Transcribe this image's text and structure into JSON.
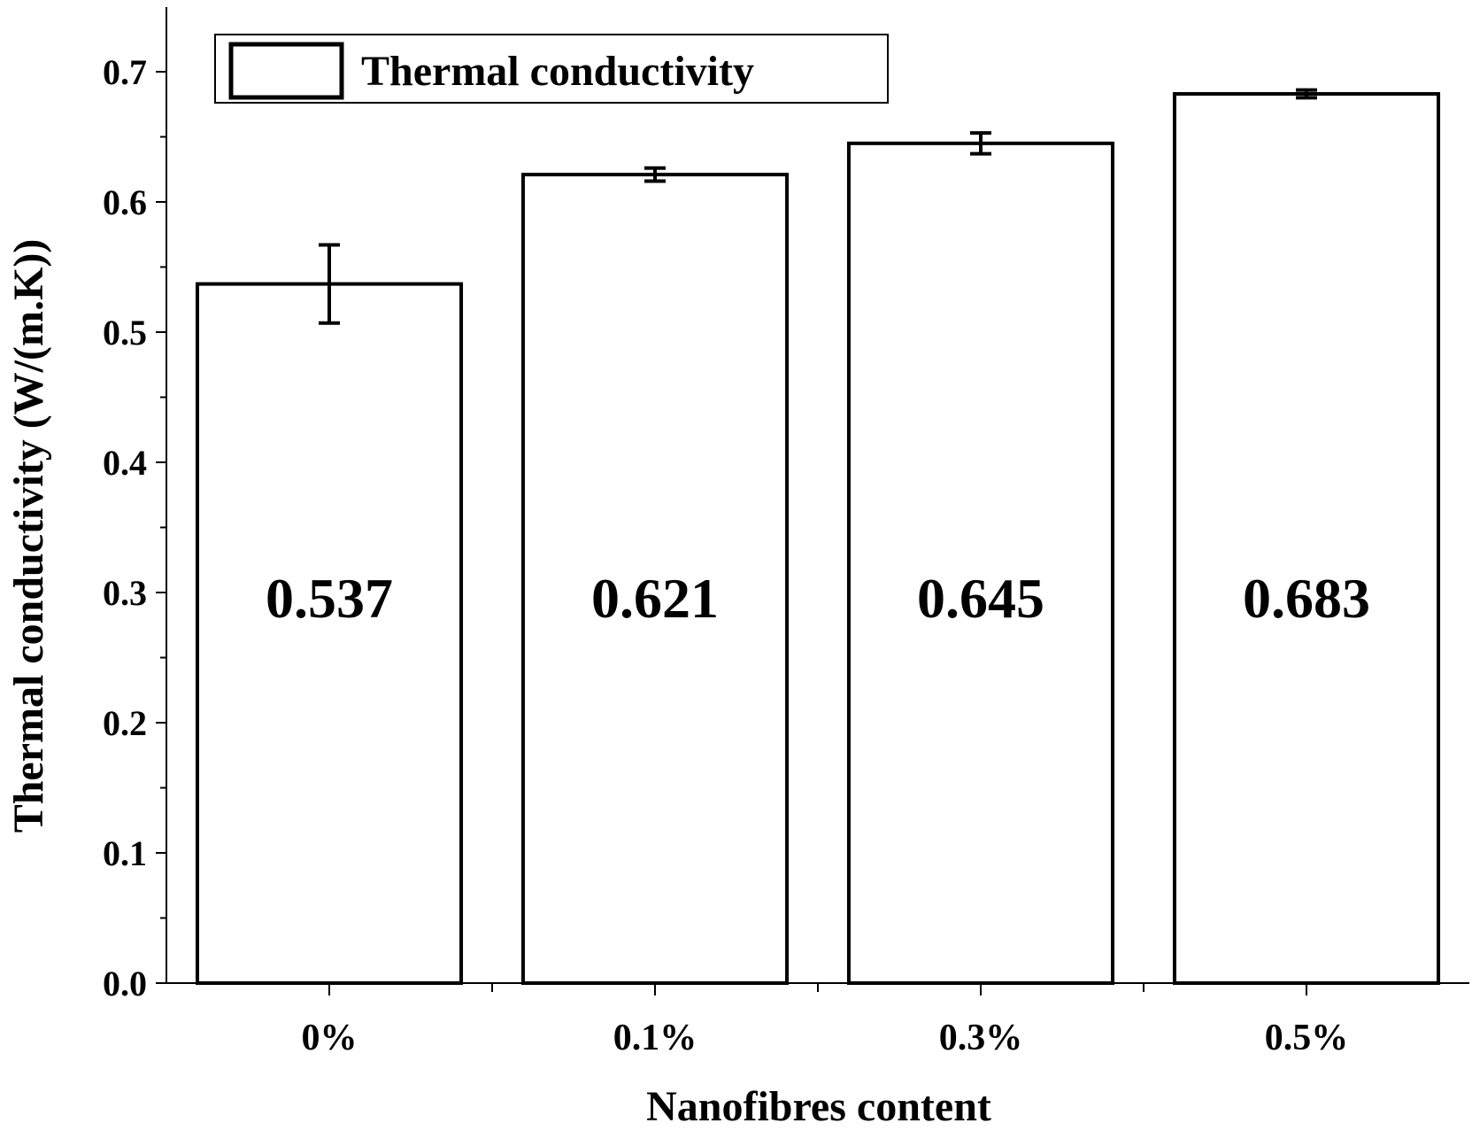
{
  "chart_data": {
    "type": "bar",
    "categories": [
      "0%",
      "0.1%",
      "0.3%",
      "0.5%"
    ],
    "series": [
      {
        "name": "Thermal conductivity",
        "values": [
          0.537,
          0.621,
          0.645,
          0.683
        ],
        "error": [
          0.03,
          0.005,
          0.008,
          0.003
        ]
      }
    ],
    "data_labels": [
      "0.537",
      "0.621",
      "0.645",
      "0.683"
    ],
    "xlabel": "Nanofibres content",
    "ylabel": "Thermal conductivity (W/(m.K))",
    "ylim": [
      0.0,
      0.75
    ],
    "yticks": [
      0.0,
      0.1,
      0.2,
      0.3,
      0.4,
      0.5,
      0.6,
      0.7
    ],
    "ytick_labels": [
      "0.0",
      "0.1",
      "0.2",
      "0.3",
      "0.4",
      "0.5",
      "0.6",
      "0.7"
    ],
    "grid": false,
    "legend_position": "top-left",
    "colors": {
      "bar_fill": "#ffffff",
      "bar_stroke": "#000000",
      "axis": "#000000"
    }
  }
}
